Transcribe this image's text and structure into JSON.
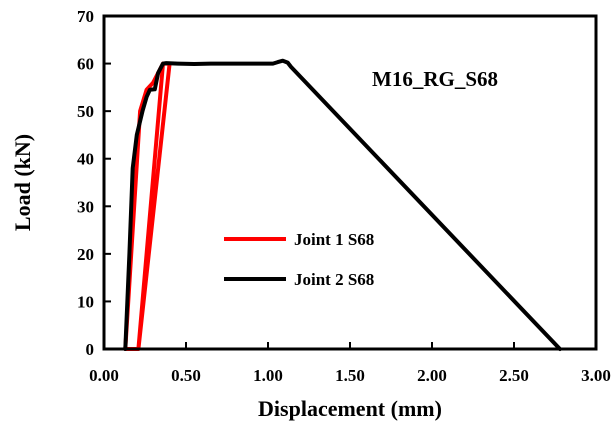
{
  "chart_data": {
    "type": "line",
    "title": "",
    "xlabel": "Displacement (mm)",
    "ylabel": "Load (kN)",
    "xlim": [
      0,
      3
    ],
    "ylim": [
      0,
      70
    ],
    "x_ticks": [
      0,
      0.5,
      1,
      1.5,
      2,
      2.5,
      3
    ],
    "x_tick_labels": [
      "0.00",
      "0.50",
      "1.00",
      "1.50",
      "2.00",
      "2.50",
      "3.00"
    ],
    "y_ticks": [
      0,
      10,
      20,
      30,
      40,
      50,
      60,
      70
    ],
    "y_tick_labels": [
      "0",
      "10",
      "20",
      "30",
      "40",
      "50",
      "60",
      "70"
    ],
    "grid": false,
    "legend_position": "center-left",
    "annotation": "M16_RG_S68",
    "series": [
      {
        "name": "Joint 1 S68",
        "color": "#ff0000",
        "points": [
          [
            0.21,
            0
          ],
          [
            0.36,
            60
          ],
          [
            0.4,
            60
          ],
          [
            0.21,
            0
          ],
          [
            0.13,
            0
          ],
          [
            0.22,
            50
          ],
          [
            0.26,
            54.5
          ],
          [
            0.3,
            56
          ],
          [
            0.36,
            60
          ]
        ]
      },
      {
        "name": "Joint 2 S68",
        "color": "#000000",
        "points": [
          [
            0.13,
            0
          ],
          [
            0.155,
            20
          ],
          [
            0.175,
            38
          ],
          [
            0.2,
            45
          ],
          [
            0.235,
            50
          ],
          [
            0.26,
            53
          ],
          [
            0.28,
            54.5
          ],
          [
            0.31,
            54.6
          ],
          [
            0.33,
            58
          ],
          [
            0.36,
            60
          ],
          [
            0.38,
            60.1
          ],
          [
            0.45,
            60
          ],
          [
            0.55,
            59.9
          ],
          [
            0.65,
            60
          ],
          [
            0.75,
            60
          ],
          [
            0.85,
            60
          ],
          [
            0.95,
            60
          ],
          [
            1.03,
            60
          ],
          [
            1.06,
            60.3
          ],
          [
            1.09,
            60.6
          ],
          [
            1.12,
            60.2
          ],
          [
            1.14,
            59.3
          ],
          [
            2.78,
            0
          ]
        ]
      }
    ]
  }
}
